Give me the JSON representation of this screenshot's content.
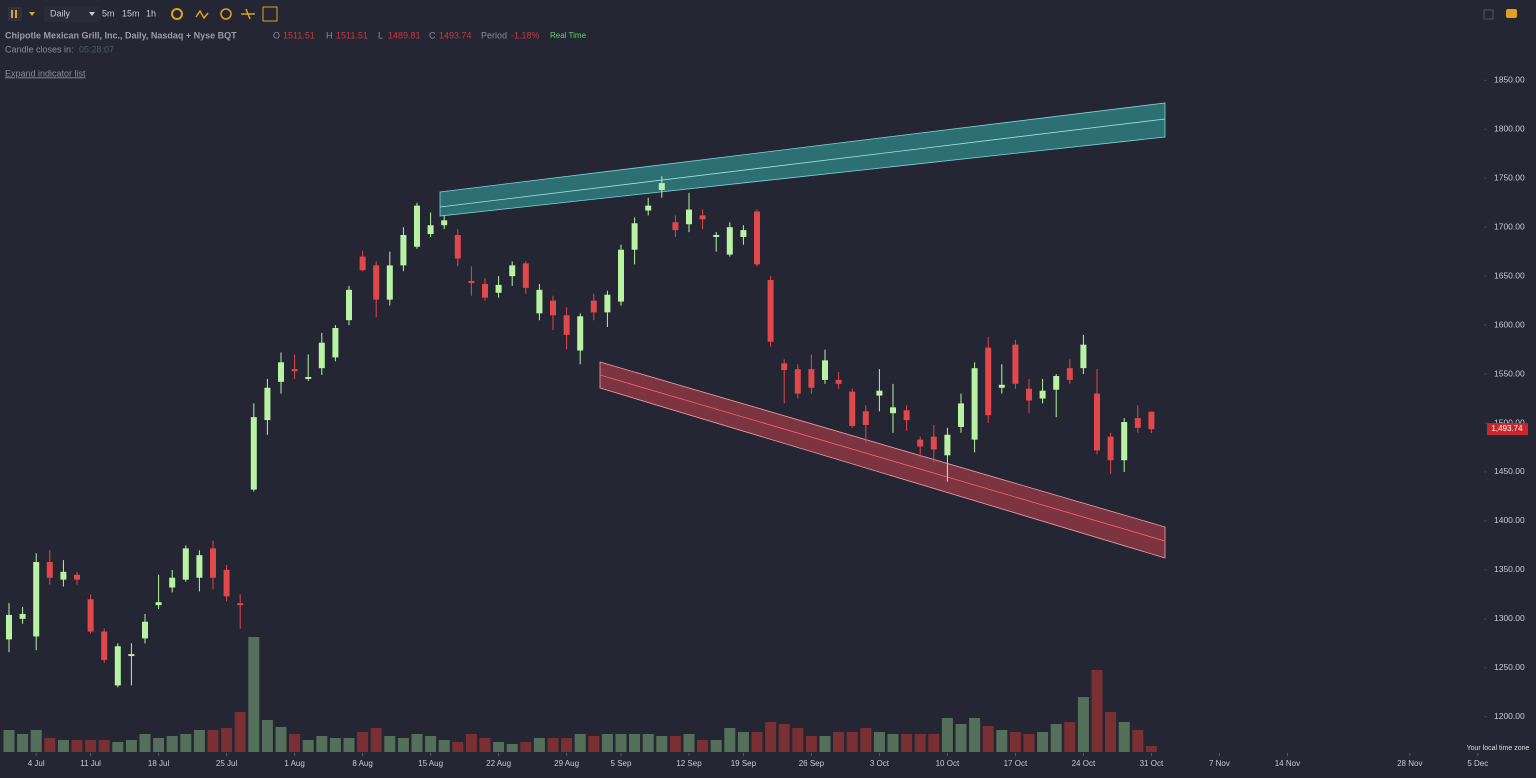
{
  "header": {
    "timeframe": "Daily",
    "intervals": [
      "5m",
      "15m",
      "1h"
    ],
    "title": "Chipotle Mexican Grill, Inc., Daily, Nasdaq + Nyse BQT",
    "legend": [
      {
        "label": "O",
        "value": 1511.51
      },
      {
        "label": "H",
        "value": 1511.51
      },
      {
        "label": "L",
        "value": 1489.81
      },
      {
        "label": "C",
        "value": 1493.74
      },
      {
        "label": "Period",
        "value": -1.18,
        "value_label": "-1.18%"
      }
    ],
    "status": "Real Time",
    "countdown_label": "Candle closes in:",
    "countdown": "05:28:07",
    "expand": "Expand indicator list",
    "timezone_note": "Your local time zone"
  },
  "chart_data": {
    "type": "candlestick",
    "up_color": "#b7f3a3",
    "down_color": "#e2474b",
    "volume_up_color": "#55705a",
    "volume_down_color": "#7a2f33",
    "ylim": [
      1164,
      1932
    ],
    "yticks": [
      {
        "value": 1850,
        "label": "1850.00"
      },
      {
        "value": 1800,
        "label": "1800.00"
      },
      {
        "value": 1750,
        "label": "1750.00"
      },
      {
        "value": 1700,
        "label": "1700.00"
      },
      {
        "value": 1650,
        "label": "1650.00"
      },
      {
        "value": 1600,
        "label": "1600.00"
      },
      {
        "value": 1550,
        "label": "1550.00"
      },
      {
        "value": 1500,
        "label": "1500.00"
      },
      {
        "value": 1450,
        "label": "1450.00"
      },
      {
        "value": 1400,
        "label": "1400.00"
      },
      {
        "value": 1350,
        "label": "1350.00"
      },
      {
        "value": 1300,
        "label": "1300.00"
      },
      {
        "value": 1250,
        "label": "1250.00"
      },
      {
        "value": 1200,
        "label": "1200.00"
      }
    ],
    "volume_ylim": [
      0,
      500
    ],
    "last_price": {
      "value": 1493.74,
      "label": "1,493.74"
    },
    "categories": [
      null,
      null,
      "4 Jul",
      null,
      null,
      null,
      "11 Jul",
      null,
      null,
      null,
      null,
      "18 Jul",
      null,
      null,
      null,
      null,
      "25 Jul",
      null,
      null,
      null,
      null,
      "1 Aug",
      null,
      null,
      null,
      null,
      "8 Aug",
      null,
      null,
      null,
      null,
      "15 Aug",
      null,
      null,
      null,
      null,
      "22 Aug",
      null,
      null,
      null,
      null,
      "29 Aug",
      null,
      null,
      null,
      "5 Sep",
      null,
      null,
      null,
      null,
      "12 Sep",
      null,
      null,
      null,
      "19 Sep",
      null,
      null,
      null,
      null,
      "26 Sep",
      null,
      null,
      null,
      null,
      "3 Oct",
      null,
      null,
      null,
      null,
      "10 Oct",
      null,
      null,
      null,
      null,
      "17 Oct",
      null,
      null,
      null,
      null,
      "24 Oct",
      null,
      null,
      null,
      null,
      "31 Oct",
      null,
      null,
      null,
      null,
      "7 Nov",
      null,
      null,
      null,
      null,
      "14 Nov",
      null,
      null,
      null,
      null,
      null,
      null,
      null,
      null,
      "28 Nov",
      null,
      null,
      null,
      null,
      "5 Dec"
    ],
    "open": [
      1279,
      1300,
      1282,
      1358,
      1340,
      1345,
      1320,
      1287,
      1232,
      1262,
      1280,
      1314,
      1332,
      1340,
      1342,
      1372,
      1350,
      1316,
      1432,
      1503,
      1542,
      1555,
      1545,
      1556,
      1567,
      1605,
      1670,
      1661,
      1626,
      1661,
      1680,
      1693,
      1702,
      1692,
      1645,
      1642,
      1633,
      1650,
      1663,
      1612,
      1625,
      1610,
      1574,
      1625,
      1613,
      1624,
      1677,
      1717,
      1738,
      1705,
      1703,
      1712,
      1690,
      1672,
      1690,
      1716,
      1646,
      1561,
      1555,
      1555,
      1544,
      1544,
      1532,
      1512,
      1528,
      1510,
      1513,
      1483,
      1486,
      1467,
      1496,
      1483,
      1577,
      1536,
      1580,
      1535,
      1525,
      1534,
      1556,
      1556,
      1530,
      1486,
      1462,
      1505,
      1511.51,
      null,
      null,
      null,
      null,
      null,
      null,
      null,
      null,
      null,
      null,
      null,
      null,
      null,
      null,
      null,
      null,
      null,
      null,
      null,
      null,
      null,
      null,
      null,
      null
    ],
    "high": [
      1316,
      1312,
      1367,
      1370,
      1360,
      1348,
      1325,
      1290,
      1275,
      1275,
      1305,
      1345,
      1350,
      1375,
      1370,
      1380,
      1355,
      1325,
      1520,
      1545,
      1572,
      1570,
      1570,
      1592,
      1600,
      1640,
      1676,
      1665,
      1675,
      1700,
      1725,
      1715,
      1712,
      1698,
      1660,
      1648,
      1650,
      1665,
      1665,
      1642,
      1630,
      1618,
      1612,
      1632,
      1635,
      1682,
      1710,
      1730,
      1752,
      1712,
      1735,
      1718,
      1695,
      1705,
      1702,
      1718,
      1650,
      1565,
      1560,
      1570,
      1575,
      1552,
      1535,
      1518,
      1555,
      1540,
      1518,
      1486,
      1498,
      1495,
      1530,
      1562,
      1588,
      1560,
      1585,
      1545,
      1545,
      1550,
      1565,
      1590,
      1555,
      1490,
      1505,
      1518,
      1511.51,
      null,
      null,
      null,
      null,
      null,
      null,
      null,
      null,
      null,
      null,
      null,
      null,
      null,
      null,
      null,
      null,
      null,
      null,
      null,
      null,
      null,
      null,
      null,
      null
    ],
    "low": [
      1266,
      1295,
      1268,
      1335,
      1333,
      1335,
      1285,
      1255,
      1230,
      1232,
      1275,
      1310,
      1327,
      1338,
      1328,
      1330,
      1318,
      1290,
      1430,
      1488,
      1530,
      1545,
      1543,
      1549,
      1563,
      1600,
      1655,
      1608,
      1620,
      1655,
      1678,
      1690,
      1698,
      1660,
      1630,
      1625,
      1628,
      1640,
      1632,
      1605,
      1595,
      1575,
      1560,
      1605,
      1598,
      1620,
      1662,
      1712,
      1730,
      1690,
      1695,
      1698,
      1675,
      1670,
      1682,
      1660,
      1578,
      1520,
      1525,
      1530,
      1540,
      1535,
      1495,
      1480,
      1512,
      1490,
      1492,
      1465,
      1460,
      1440,
      1490,
      1470,
      1500,
      1530,
      1535,
      1510,
      1520,
      1506,
      1540,
      1550,
      1468,
      1448,
      1450,
      1490,
      1489.81,
      null,
      null,
      null,
      null,
      null,
      null,
      null,
      null,
      null,
      null,
      null,
      null,
      null,
      null,
      null,
      null,
      null,
      null,
      null,
      null,
      null,
      null,
      null,
      null
    ],
    "close": [
      1304,
      1305,
      1358,
      1342,
      1348,
      1340,
      1287,
      1258,
      1272,
      1264,
      1297,
      1317,
      1342,
      1372,
      1365,
      1342,
      1323,
      1314,
      1506,
      1536,
      1562,
      1553,
      1547,
      1582,
      1597,
      1636,
      1656,
      1626,
      1661,
      1692,
      1722,
      1702,
      1707,
      1668,
      1643,
      1628,
      1641,
      1661,
      1638,
      1636,
      1610,
      1590,
      1609,
      1613,
      1631,
      1677,
      1704,
      1722,
      1745,
      1697,
      1718,
      1708,
      1692,
      1700,
      1697,
      1662,
      1583,
      1554,
      1530,
      1536,
      1564,
      1540,
      1497,
      1498,
      1533,
      1516,
      1503,
      1476,
      1473,
      1488,
      1520,
      1556,
      1508,
      1539,
      1540,
      1523,
      1533,
      1548,
      1544,
      1580,
      1472,
      1462,
      1501,
      1495,
      1493.74,
      null,
      null,
      null,
      null,
      null,
      null,
      null,
      null,
      null,
      null,
      null,
      null,
      null,
      null,
      null,
      null,
      null,
      null,
      null,
      null,
      null,
      null,
      null,
      null
    ],
    "volume": [
      22,
      18,
      22,
      14,
      12,
      12,
      12,
      12,
      10,
      12,
      18,
      14,
      16,
      18,
      22,
      22,
      24,
      40,
      115,
      32,
      25,
      18,
      12,
      16,
      14,
      14,
      20,
      24,
      16,
      14,
      18,
      16,
      12,
      10,
      18,
      14,
      10,
      8,
      10,
      14,
      14,
      14,
      18,
      16,
      18,
      18,
      18,
      18,
      16,
      16,
      18,
      12,
      12,
      24,
      20,
      20,
      30,
      28,
      24,
      16,
      16,
      20,
      20,
      24,
      20,
      18,
      18,
      18,
      18,
      34,
      28,
      34,
      26,
      22,
      20,
      18,
      20,
      28,
      30,
      55,
      82,
      40,
      30,
      22,
      6,
      null,
      null,
      null,
      null,
      null,
      null,
      null,
      null,
      null,
      null,
      null,
      null,
      null,
      null,
      null,
      null,
      null,
      null,
      null,
      null,
      null,
      null,
      null,
      null
    ]
  }
}
